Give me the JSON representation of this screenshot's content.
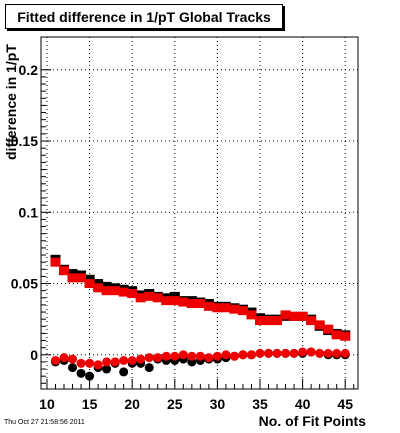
{
  "title": "Fitted difference in 1/pT  Global Tracks",
  "footer": "Thu Oct 27 21:58:56 2011",
  "colors": {
    "series_black": "#000000",
    "series_red": "#ee0000",
    "grid": "#000000"
  },
  "chart_data": {
    "type": "scatter",
    "title": "Fitted difference in 1/pT  Global Tracks",
    "xlabel": "No. of Fit Points",
    "ylabel": "difference in 1/pT",
    "xlim": [
      9.3,
      46.5
    ],
    "ylim": [
      -0.024,
      0.223
    ],
    "x_ticks": [
      10,
      15,
      20,
      25,
      30,
      35,
      40,
      45
    ],
    "x_tick_labels": [
      "10",
      "15",
      "20",
      "25",
      "30",
      "35",
      "40",
      "45"
    ],
    "y_ticks": [
      0,
      0.05,
      0.1,
      0.15,
      0.2
    ],
    "y_tick_labels": [
      "0",
      "0.05",
      "0.1",
      "0.15",
      "0.2"
    ],
    "grid": true,
    "x": [
      11,
      12,
      13,
      14,
      15,
      16,
      17,
      18,
      19,
      20,
      21,
      22,
      23,
      24,
      25,
      26,
      27,
      28,
      29,
      30,
      31,
      32,
      33,
      34,
      35,
      36,
      37,
      38,
      39,
      40,
      41,
      42,
      43,
      44,
      45
    ],
    "series": [
      {
        "marker": "square",
        "color": "#000000",
        "values": [
          0.067,
          0.06,
          0.057,
          0.056,
          0.053,
          0.05,
          0.048,
          0.047,
          0.046,
          0.045,
          0.042,
          0.043,
          0.041,
          0.04,
          0.041,
          0.038,
          0.038,
          0.037,
          0.036,
          0.034,
          0.034,
          0.033,
          0.032,
          0.03,
          0.026,
          0.025,
          0.025,
          0.027,
          0.027,
          0.027,
          0.025,
          0.02,
          0.017,
          0.015,
          0.014
        ]
      },
      {
        "marker": "square",
        "color": "#ee0000",
        "values": [
          0.065,
          0.059,
          0.054,
          0.054,
          0.05,
          0.047,
          0.045,
          0.045,
          0.044,
          0.043,
          0.04,
          0.041,
          0.04,
          0.038,
          0.038,
          0.037,
          0.036,
          0.036,
          0.034,
          0.033,
          0.033,
          0.032,
          0.031,
          0.028,
          0.024,
          0.024,
          0.024,
          0.028,
          0.027,
          0.027,
          0.024,
          0.021,
          0.018,
          0.014,
          0.013
        ]
      },
      {
        "marker": "circle",
        "color": "#000000",
        "values": [
          -0.005,
          -0.004,
          -0.009,
          -0.013,
          -0.015,
          -0.009,
          -0.01,
          -0.006,
          -0.012,
          -0.006,
          -0.006,
          -0.009,
          -0.003,
          -0.004,
          -0.004,
          -0.003,
          -0.005,
          -0.004,
          -0.003,
          -0.003,
          -0.002,
          -0.001,
          0.0,
          0.0,
          0.001,
          0.001,
          0.001,
          0.001,
          0.001,
          0.001,
          0.002,
          0.001,
          0.0,
          0.0,
          0.0
        ]
      },
      {
        "marker": "circle",
        "color": "#ee0000",
        "values": [
          -0.004,
          -0.002,
          -0.003,
          -0.006,
          -0.006,
          -0.007,
          -0.005,
          -0.005,
          -0.004,
          -0.004,
          -0.003,
          -0.002,
          -0.002,
          -0.001,
          -0.001,
          0.0,
          -0.001,
          -0.001,
          -0.002,
          -0.001,
          0.0,
          -0.001,
          0.0,
          0.0,
          0.001,
          0.001,
          0.001,
          0.001,
          0.001,
          0.002,
          0.002,
          0.001,
          0.001,
          0.001,
          0.001
        ]
      }
    ]
  }
}
